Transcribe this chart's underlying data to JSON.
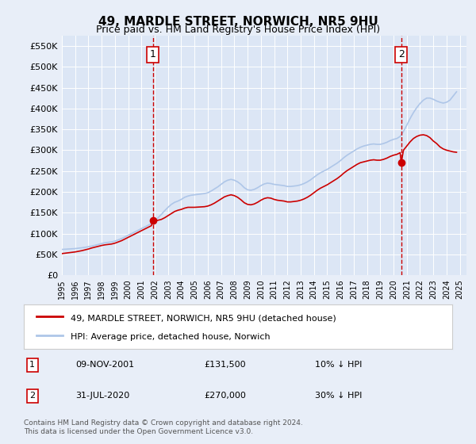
{
  "title": "49, MARDLE STREET, NORWICH, NR5 9HU",
  "subtitle": "Price paid vs. HM Land Registry's House Price Index (HPI)",
  "bg_color": "#e8eef8",
  "plot_bg_color": "#dce6f5",
  "ylim": [
    0,
    575000
  ],
  "yticks": [
    0,
    50000,
    100000,
    150000,
    200000,
    250000,
    300000,
    350000,
    400000,
    450000,
    500000,
    550000
  ],
  "ylabel_format": "£{0}K",
  "xstart_year": 1995,
  "xend_year": 2025,
  "legend_entry1": "49, MARDLE STREET, NORWICH, NR5 9HU (detached house)",
  "legend_entry2": "HPI: Average price, detached house, Norwich",
  "transaction1_label": "1",
  "transaction1_date": "09-NOV-2001",
  "transaction1_price": "£131,500",
  "transaction1_pct": "10% ↓ HPI",
  "transaction1_year": 2001.85,
  "transaction1_value": 131500,
  "transaction2_label": "2",
  "transaction2_date": "31-JUL-2020",
  "transaction2_price": "£270,000",
  "transaction2_pct": "30% ↓ HPI",
  "transaction2_year": 2020.58,
  "transaction2_value": 270000,
  "footer": "Contains HM Land Registry data © Crown copyright and database right 2024.\nThis data is licensed under the Open Government Licence v3.0.",
  "hpi_color": "#aec6e8",
  "price_color": "#cc0000",
  "vline_color": "#cc0000",
  "marker_color": "#cc0000",
  "hpi_data": [
    [
      1995.0,
      62000
    ],
    [
      1995.25,
      62500
    ],
    [
      1995.5,
      63000
    ],
    [
      1995.75,
      63500
    ],
    [
      1996.0,
      64000
    ],
    [
      1996.25,
      65000
    ],
    [
      1996.5,
      66000
    ],
    [
      1996.75,
      67000
    ],
    [
      1997.0,
      68500
    ],
    [
      1997.25,
      70000
    ],
    [
      1997.5,
      72000
    ],
    [
      1997.75,
      74000
    ],
    [
      1998.0,
      76000
    ],
    [
      1998.25,
      78000
    ],
    [
      1998.5,
      79000
    ],
    [
      1998.75,
      80000
    ],
    [
      1999.0,
      82000
    ],
    [
      1999.25,
      85000
    ],
    [
      1999.5,
      88000
    ],
    [
      1999.75,
      92000
    ],
    [
      2000.0,
      96000
    ],
    [
      2000.25,
      100000
    ],
    [
      2000.5,
      104000
    ],
    [
      2000.75,
      108000
    ],
    [
      2001.0,
      112000
    ],
    [
      2001.25,
      116000
    ],
    [
      2001.5,
      120000
    ],
    [
      2001.75,
      124000
    ],
    [
      2002.0,
      130000
    ],
    [
      2002.25,
      138000
    ],
    [
      2002.5,
      146000
    ],
    [
      2002.75,
      155000
    ],
    [
      2003.0,
      163000
    ],
    [
      2003.25,
      170000
    ],
    [
      2003.5,
      175000
    ],
    [
      2003.75,
      178000
    ],
    [
      2004.0,
      182000
    ],
    [
      2004.25,
      187000
    ],
    [
      2004.5,
      190000
    ],
    [
      2004.75,
      192000
    ],
    [
      2005.0,
      193000
    ],
    [
      2005.25,
      194000
    ],
    [
      2005.5,
      195000
    ],
    [
      2005.75,
      196000
    ],
    [
      2006.0,
      198000
    ],
    [
      2006.25,
      202000
    ],
    [
      2006.5,
      207000
    ],
    [
      2006.75,
      212000
    ],
    [
      2007.0,
      218000
    ],
    [
      2007.25,
      224000
    ],
    [
      2007.5,
      228000
    ],
    [
      2007.75,
      230000
    ],
    [
      2008.0,
      228000
    ],
    [
      2008.25,
      224000
    ],
    [
      2008.5,
      218000
    ],
    [
      2008.75,
      210000
    ],
    [
      2009.0,
      205000
    ],
    [
      2009.25,
      204000
    ],
    [
      2009.5,
      206000
    ],
    [
      2009.75,
      210000
    ],
    [
      2010.0,
      215000
    ],
    [
      2010.25,
      219000
    ],
    [
      2010.5,
      221000
    ],
    [
      2010.75,
      220000
    ],
    [
      2011.0,
      218000
    ],
    [
      2011.25,
      217000
    ],
    [
      2011.5,
      216000
    ],
    [
      2011.75,
      215000
    ],
    [
      2012.0,
      213000
    ],
    [
      2012.25,
      213000
    ],
    [
      2012.5,
      214000
    ],
    [
      2012.75,
      215000
    ],
    [
      2013.0,
      217000
    ],
    [
      2013.25,
      220000
    ],
    [
      2013.5,
      224000
    ],
    [
      2013.75,
      229000
    ],
    [
      2014.0,
      235000
    ],
    [
      2014.25,
      241000
    ],
    [
      2014.5,
      246000
    ],
    [
      2014.75,
      250000
    ],
    [
      2015.0,
      254000
    ],
    [
      2015.25,
      259000
    ],
    [
      2015.5,
      264000
    ],
    [
      2015.75,
      269000
    ],
    [
      2016.0,
      275000
    ],
    [
      2016.25,
      282000
    ],
    [
      2016.5,
      288000
    ],
    [
      2016.75,
      293000
    ],
    [
      2017.0,
      298000
    ],
    [
      2017.25,
      303000
    ],
    [
      2017.5,
      307000
    ],
    [
      2017.75,
      310000
    ],
    [
      2018.0,
      312000
    ],
    [
      2018.25,
      314000
    ],
    [
      2018.5,
      315000
    ],
    [
      2018.75,
      314000
    ],
    [
      2019.0,
      314000
    ],
    [
      2019.25,
      316000
    ],
    [
      2019.5,
      319000
    ],
    [
      2019.75,
      323000
    ],
    [
      2020.0,
      326000
    ],
    [
      2020.25,
      328000
    ],
    [
      2020.5,
      333000
    ],
    [
      2020.75,
      345000
    ],
    [
      2021.0,
      360000
    ],
    [
      2021.25,
      376000
    ],
    [
      2021.5,
      390000
    ],
    [
      2021.75,
      402000
    ],
    [
      2022.0,
      412000
    ],
    [
      2022.25,
      420000
    ],
    [
      2022.5,
      425000
    ],
    [
      2022.75,
      425000
    ],
    [
      2023.0,
      422000
    ],
    [
      2023.25,
      418000
    ],
    [
      2023.5,
      415000
    ],
    [
      2023.75,
      413000
    ],
    [
      2024.0,
      415000
    ],
    [
      2024.25,
      420000
    ],
    [
      2024.5,
      430000
    ],
    [
      2024.75,
      440000
    ]
  ],
  "price_data": [
    [
      1995.0,
      52000
    ],
    [
      1995.25,
      53000
    ],
    [
      1995.5,
      54000
    ],
    [
      1995.75,
      55000
    ],
    [
      1996.0,
      56000
    ],
    [
      1996.25,
      57500
    ],
    [
      1996.5,
      59000
    ],
    [
      1996.75,
      61000
    ],
    [
      1997.0,
      63000
    ],
    [
      1997.25,
      65500
    ],
    [
      1997.5,
      67500
    ],
    [
      1997.75,
      69500
    ],
    [
      1998.0,
      71500
    ],
    [
      1998.25,
      73000
    ],
    [
      1998.5,
      74000
    ],
    [
      1998.75,
      75000
    ],
    [
      1999.0,
      77000
    ],
    [
      1999.25,
      80000
    ],
    [
      1999.5,
      83000
    ],
    [
      1999.75,
      87000
    ],
    [
      2000.0,
      91000
    ],
    [
      2000.25,
      95000
    ],
    [
      2000.5,
      99000
    ],
    [
      2000.75,
      103000
    ],
    [
      2001.0,
      107000
    ],
    [
      2001.25,
      111000
    ],
    [
      2001.5,
      115000
    ],
    [
      2001.75,
      119000
    ],
    [
      2001.85,
      131500
    ],
    [
      2002.0,
      130000
    ],
    [
      2002.25,
      132000
    ],
    [
      2002.5,
      134000
    ],
    [
      2002.75,
      138000
    ],
    [
      2003.0,
      143000
    ],
    [
      2003.25,
      148000
    ],
    [
      2003.5,
      153000
    ],
    [
      2003.75,
      156000
    ],
    [
      2004.0,
      158000
    ],
    [
      2004.25,
      161000
    ],
    [
      2004.5,
      163000
    ],
    [
      2004.75,
      163000
    ],
    [
      2005.0,
      163000
    ],
    [
      2005.25,
      163500
    ],
    [
      2005.5,
      164000
    ],
    [
      2005.75,
      164500
    ],
    [
      2006.0,
      166000
    ],
    [
      2006.25,
      169000
    ],
    [
      2006.5,
      173000
    ],
    [
      2006.75,
      178000
    ],
    [
      2007.0,
      183000
    ],
    [
      2007.25,
      188000
    ],
    [
      2007.5,
      191000
    ],
    [
      2007.75,
      193000
    ],
    [
      2008.0,
      191000
    ],
    [
      2008.25,
      187000
    ],
    [
      2008.5,
      181000
    ],
    [
      2008.75,
      174000
    ],
    [
      2009.0,
      170000
    ],
    [
      2009.25,
      169000
    ],
    [
      2009.5,
      171000
    ],
    [
      2009.75,
      175000
    ],
    [
      2010.0,
      180000
    ],
    [
      2010.25,
      184000
    ],
    [
      2010.5,
      186000
    ],
    [
      2010.75,
      185000
    ],
    [
      2011.0,
      182000
    ],
    [
      2011.25,
      180000
    ],
    [
      2011.5,
      179000
    ],
    [
      2011.75,
      178000
    ],
    [
      2012.0,
      176000
    ],
    [
      2012.25,
      176000
    ],
    [
      2012.5,
      177000
    ],
    [
      2012.75,
      178000
    ],
    [
      2013.0,
      180000
    ],
    [
      2013.25,
      183000
    ],
    [
      2013.5,
      187000
    ],
    [
      2013.75,
      192000
    ],
    [
      2014.0,
      198000
    ],
    [
      2014.25,
      204000
    ],
    [
      2014.5,
      209000
    ],
    [
      2014.75,
      213000
    ],
    [
      2015.0,
      217000
    ],
    [
      2015.25,
      222000
    ],
    [
      2015.5,
      227000
    ],
    [
      2015.75,
      232000
    ],
    [
      2016.0,
      238000
    ],
    [
      2016.25,
      245000
    ],
    [
      2016.5,
      251000
    ],
    [
      2016.75,
      256000
    ],
    [
      2017.0,
      261000
    ],
    [
      2017.25,
      266000
    ],
    [
      2017.5,
      270000
    ],
    [
      2017.75,
      272000
    ],
    [
      2018.0,
      274000
    ],
    [
      2018.25,
      276000
    ],
    [
      2018.5,
      277000
    ],
    [
      2018.75,
      276000
    ],
    [
      2019.0,
      276000
    ],
    [
      2019.25,
      278000
    ],
    [
      2019.5,
      281000
    ],
    [
      2019.75,
      285000
    ],
    [
      2020.0,
      288000
    ],
    [
      2020.25,
      290000
    ],
    [
      2020.5,
      294000
    ],
    [
      2020.58,
      270000
    ],
    [
      2020.75,
      300000
    ],
    [
      2021.0,
      310000
    ],
    [
      2021.25,
      320000
    ],
    [
      2021.5,
      328000
    ],
    [
      2021.75,
      333000
    ],
    [
      2022.0,
      336000
    ],
    [
      2022.25,
      337000
    ],
    [
      2022.5,
      335000
    ],
    [
      2022.75,
      330000
    ],
    [
      2023.0,
      322000
    ],
    [
      2023.25,
      316000
    ],
    [
      2023.5,
      308000
    ],
    [
      2023.75,
      303000
    ],
    [
      2024.0,
      300000
    ],
    [
      2024.25,
      298000
    ],
    [
      2024.5,
      296000
    ],
    [
      2024.75,
      295000
    ]
  ]
}
